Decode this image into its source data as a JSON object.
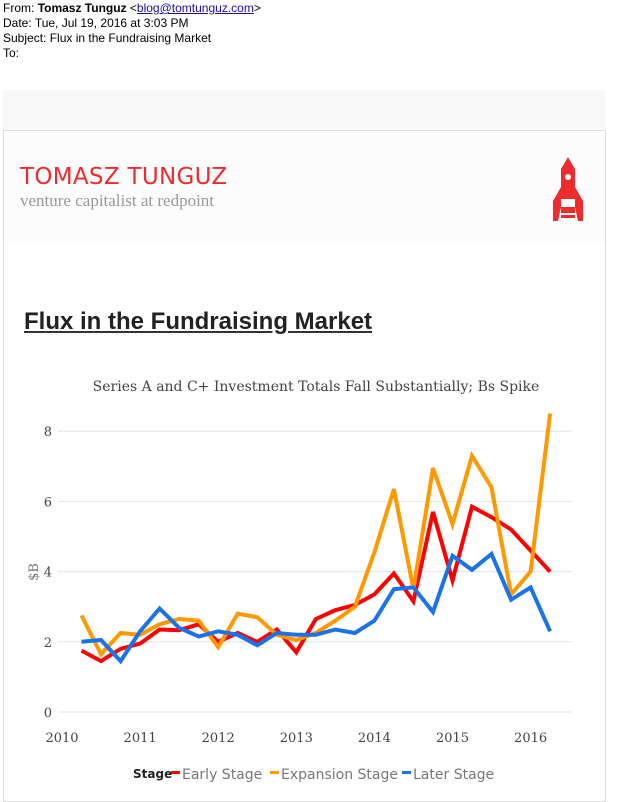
{
  "email": {
    "from_label": "From:",
    "from_name": "Tomasz Tunguz",
    "from_email": "blog@tomtunguz.com",
    "date_label": "Date:",
    "date": "Tue, Jul 19, 2016 at 3:03 PM",
    "subject_label": "Subject:",
    "subject": "Flux in the Fundraising Market",
    "to_label": "To:"
  },
  "blog": {
    "brand": "TOMASZ TUNGUZ",
    "tagline": "venture capitalist at redpoint",
    "logo_icon": "rocket-icon",
    "post_title": "Flux in the Fundraising Market"
  },
  "chart_data": {
    "type": "line",
    "title": "Series A and C+ Investment Totals Fall Substantially; Bs Spike",
    "xlabel": "",
    "ylabel": "$B",
    "xlim": [
      2010,
      2016.55
    ],
    "ylim": [
      0,
      8.8
    ],
    "x_ticks": [
      "2010",
      "2011",
      "2012",
      "2013",
      "2014",
      "2015",
      "2016"
    ],
    "y_ticks": [
      "0",
      "2",
      "4",
      "6",
      "8"
    ],
    "grid": true,
    "legend_title": "Stage",
    "legend_position": "bottom",
    "x": [
      2010.25,
      2010.5,
      2010.75,
      2011,
      2011.25,
      2011.5,
      2011.75,
      2012,
      2012.25,
      2012.5,
      2012.75,
      2013,
      2013.25,
      2013.5,
      2013.75,
      2014,
      2014.25,
      2014.5,
      2014.75,
      2015,
      2015.25,
      2015.5,
      2015.75,
      2016,
      2016.25
    ],
    "series": [
      {
        "name": "Early Stage",
        "color": "#ff0000",
        "values": [
          1.75,
          1.45,
          1.8,
          1.95,
          2.35,
          2.33,
          2.5,
          2.0,
          2.25,
          2.0,
          2.35,
          1.7,
          2.65,
          2.9,
          3.05,
          3.35,
          3.95,
          3.15,
          5.7,
          3.75,
          5.85,
          5.55,
          5.2,
          4.6,
          4.0
        ]
      },
      {
        "name": "Expansion Stage",
        "color": "#ff9900",
        "values": [
          2.75,
          1.65,
          2.25,
          2.2,
          2.5,
          2.65,
          2.6,
          1.85,
          2.8,
          2.7,
          2.2,
          2.05,
          2.25,
          2.6,
          3.0,
          4.55,
          6.35,
          3.5,
          6.95,
          5.35,
          7.3,
          6.4,
          3.35,
          4.0,
          8.5
        ]
      },
      {
        "name": "Later Stage",
        "color": "#1a73e8",
        "values": [
          2.0,
          2.05,
          1.45,
          2.3,
          2.95,
          2.4,
          2.15,
          2.3,
          2.2,
          1.9,
          2.25,
          2.2,
          2.2,
          2.35,
          2.25,
          2.6,
          3.5,
          3.55,
          2.85,
          4.45,
          4.05,
          4.5,
          3.2,
          3.55,
          2.3
        ]
      }
    ]
  }
}
